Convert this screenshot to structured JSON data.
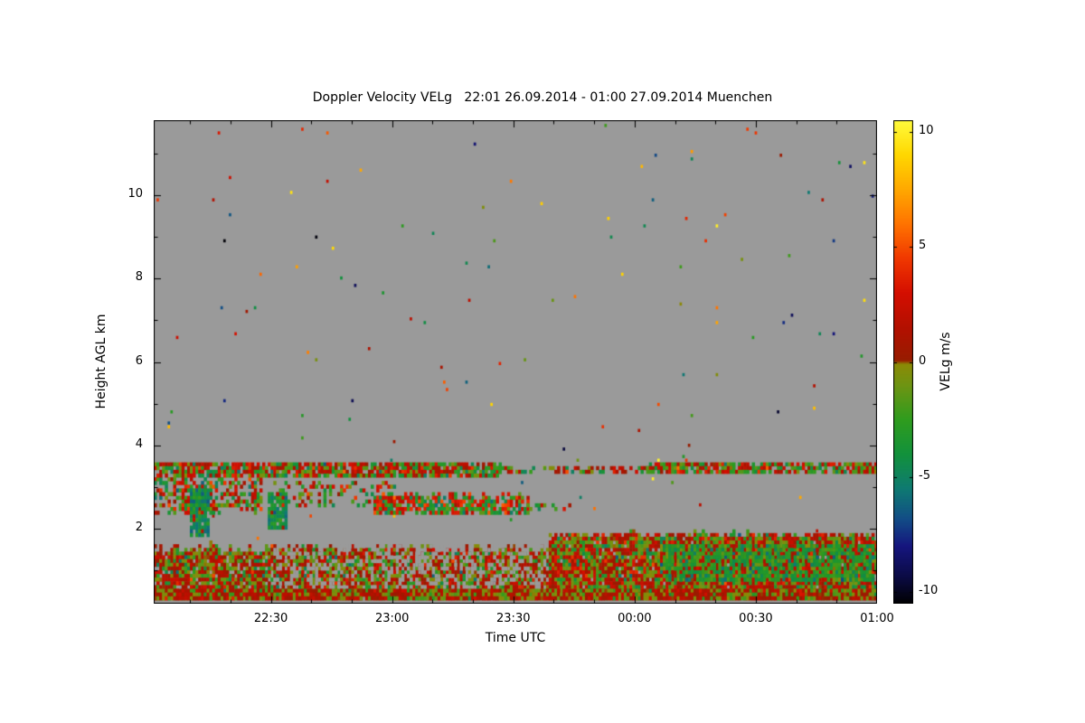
{
  "chart_data": {
    "type": "heatmap",
    "title": "Doppler Velocity VELg   22:01 26.09.2014 - 01:00 27.09.2014 Muenchen",
    "instrument_product": "Doppler Velocity VELg",
    "site": "Muenchen",
    "time_start": "22:01 26.09.2014",
    "time_end": "01:00 27.09.2014",
    "xlabel": "Time UTC",
    "ylabel": "Height AGL km",
    "duration_min": 179,
    "x_ticks": [
      {
        "label": "22:30",
        "minute": 29
      },
      {
        "label": "23:00",
        "minute": 59
      },
      {
        "label": "23:30",
        "minute": 89
      },
      {
        "label": "00:00",
        "minute": 119
      },
      {
        "label": "00:30",
        "minute": 149
      },
      {
        "label": "01:00",
        "minute": 179
      }
    ],
    "x_minor_step_min": 10,
    "y_ticks": [
      2,
      4,
      6,
      8,
      10
    ],
    "y_minor_step_km": 1,
    "ylim": [
      0.2,
      11.8
    ],
    "no_data_color": "#9a9a9a",
    "axis_color": "#000000",
    "colorbar": {
      "label": "VELg m/s",
      "ticks": [
        10,
        5,
        0,
        -5,
        -10
      ],
      "vmin": -10.5,
      "vmax": 10.5
    },
    "colormap_stops": [
      [
        -10.5,
        "#000000"
      ],
      [
        -9.3,
        "#0b0b45"
      ],
      [
        -8.0,
        "#15157e"
      ],
      [
        -6.8,
        "#124d86"
      ],
      [
        -5.5,
        "#0e7a72"
      ],
      [
        -4.0,
        "#12913c"
      ],
      [
        -2.5,
        "#2f9c1e"
      ],
      [
        -1.0,
        "#6e9413"
      ],
      [
        -0.08,
        "#8c8a06"
      ],
      [
        0.08,
        "#971c00"
      ],
      [
        1.5,
        "#b31000"
      ],
      [
        3.0,
        "#d40e00"
      ],
      [
        4.5,
        "#f03800"
      ],
      [
        6.0,
        "#ff7300"
      ],
      [
        7.5,
        "#ffa800"
      ],
      [
        9.0,
        "#ffd700"
      ],
      [
        10.5,
        "#fffb3c"
      ]
    ],
    "grid": [
      260,
      130
    ],
    "seed": 1234,
    "features": [
      {
        "name": "speckle-noise",
        "t": [
          0,
          179
        ],
        "h": [
          0.25,
          11.75
        ],
        "density": 0.005,
        "cell_scale": 0.75,
        "v": {
          "uniform": [
            -10.5,
            10.5
          ]
        }
      },
      {
        "name": "left-cloud-stack",
        "t": [
          0,
          26
        ],
        "h": [
          2.35,
          3.2
        ],
        "density": 0.5,
        "v": {
          "mix": [
            {
              "w": 0.5,
              "mean": 2.2,
              "sd": 1.5
            },
            {
              "w": 0.5,
              "mean": -3.0,
              "sd": 1.5
            }
          ]
        }
      },
      {
        "name": "green-updraft-streak-1",
        "t": [
          9,
          12.5
        ],
        "h": [
          1.85,
          2.95
        ],
        "density": 0.9,
        "v": {
          "mix": [
            {
              "w": 0.92,
              "mean": -4.5,
              "sd": 1.2
            },
            {
              "w": 0.08,
              "mean": 2.0,
              "sd": 1.0
            }
          ]
        }
      },
      {
        "name": "green-updraft-streak-2",
        "t": [
          28.5,
          32
        ],
        "h": [
          1.95,
          2.85
        ],
        "density": 0.85,
        "v": {
          "mix": [
            {
              "w": 0.9,
              "mean": -4.2,
              "sd": 1.2
            },
            {
              "w": 0.1,
              "mean": 2.0,
              "sd": 1.0
            }
          ]
        }
      },
      {
        "name": "mid-cloud-scatter",
        "t": [
          30,
          60
        ],
        "h": [
          2.5,
          3.15
        ],
        "density": 0.28,
        "v": {
          "mix": [
            {
              "w": 0.5,
              "mean": 2.0,
              "sd": 1.5
            },
            {
              "w": 0.5,
              "mean": -2.8,
              "sd": 1.4
            }
          ]
        }
      },
      {
        "name": "mid-cloud-blob",
        "t": [
          55,
          92
        ],
        "h": [
          2.35,
          2.9
        ],
        "density": 0.8,
        "edge_jitter": 0.2,
        "v": {
          "mix": [
            {
              "w": 0.55,
              "mean": 3.2,
              "sd": 1.2
            },
            {
              "w": 0.45,
              "mean": -3.2,
              "sd": 1.3
            }
          ]
        }
      },
      {
        "name": "mid-cloud-remnant",
        "t": [
          92,
          103
        ],
        "h": [
          2.4,
          2.65
        ],
        "density": 0.3,
        "v": {
          "mix": [
            {
              "w": 0.5,
              "mean": 2.5,
              "sd": 1.2
            },
            {
              "w": 0.5,
              "mean": -2.5,
              "sd": 1.2
            }
          ]
        }
      },
      {
        "name": "elevated-band-early",
        "t": [
          0,
          85
        ],
        "h": [
          3.25,
          3.62
        ],
        "density": 0.85,
        "v": {
          "mix": [
            {
              "w": 0.55,
              "mean": 1.8,
              "sd": 1.4
            },
            {
              "w": 0.45,
              "mean": -2.6,
              "sd": 1.5
            }
          ]
        }
      },
      {
        "name": "elevated-band-mid",
        "t": [
          85,
          122
        ],
        "h": [
          3.3,
          3.52
        ],
        "density": 0.5,
        "v": {
          "mix": [
            {
              "w": 0.55,
              "mean": 1.8,
              "sd": 1.4
            },
            {
              "w": 0.45,
              "mean": -2.6,
              "sd": 1.5
            }
          ]
        }
      },
      {
        "name": "elevated-band-late",
        "t": [
          122,
          179
        ],
        "h": [
          3.28,
          3.55
        ],
        "density": 0.8,
        "v": {
          "mix": [
            {
              "w": 0.45,
              "mean": 2.0,
              "sd": 1.3
            },
            {
              "w": 0.55,
              "mean": -2.5,
              "sd": 1.3
            }
          ]
        }
      },
      {
        "name": "boundary-layer-left",
        "t": [
          0,
          98
        ],
        "h": [
          0.25,
          1.68
        ],
        "density": 0.88,
        "edge_jitter": 0.3,
        "v": {
          "mix": [
            {
              "w": 0.45,
              "mean": 1.6,
              "sd": 1.3
            },
            {
              "w": 0.3,
              "mean": -0.2,
              "sd": 0.8
            },
            {
              "w": 0.25,
              "mean": -3.0,
              "sd": 1.4
            }
          ]
        }
      },
      {
        "name": "boundary-layer-left-gaps",
        "t": [
          30,
          98
        ],
        "h": [
          0.6,
          1.6
        ],
        "density": 0.3,
        "v": {
          "nodata": true
        }
      },
      {
        "name": "boundary-layer-right",
        "t": [
          98,
          179
        ],
        "h": [
          0.25,
          1.95
        ],
        "density": 0.96,
        "edge_jitter": 0.15,
        "v": {
          "mix": [
            {
              "w": 0.45,
              "mean": 1.8,
              "sd": 1.2
            },
            {
              "w": 0.2,
              "mean": -0.2,
              "sd": 0.8
            },
            {
              "w": 0.35,
              "mean": -2.5,
              "sd": 1.5
            }
          ]
        }
      },
      {
        "name": "right-green-core",
        "t": [
          126,
          177
        ],
        "h": [
          0.7,
          1.6
        ],
        "density": 0.8,
        "v": {
          "mix": [
            {
              "w": 0.85,
              "mean": -3.2,
              "sd": 1.2
            },
            {
              "w": 0.15,
              "mean": 1.5,
              "sd": 1.0
            }
          ]
        }
      },
      {
        "name": "surface-layer",
        "t": [
          0,
          179
        ],
        "h": [
          0.25,
          0.6
        ],
        "density": 0.97,
        "v": {
          "mix": [
            {
              "w": 0.6,
              "mean": 1.2,
              "sd": 1.0
            },
            {
              "w": 0.4,
              "mean": -0.8,
              "sd": 1.2
            }
          ]
        }
      }
    ]
  }
}
